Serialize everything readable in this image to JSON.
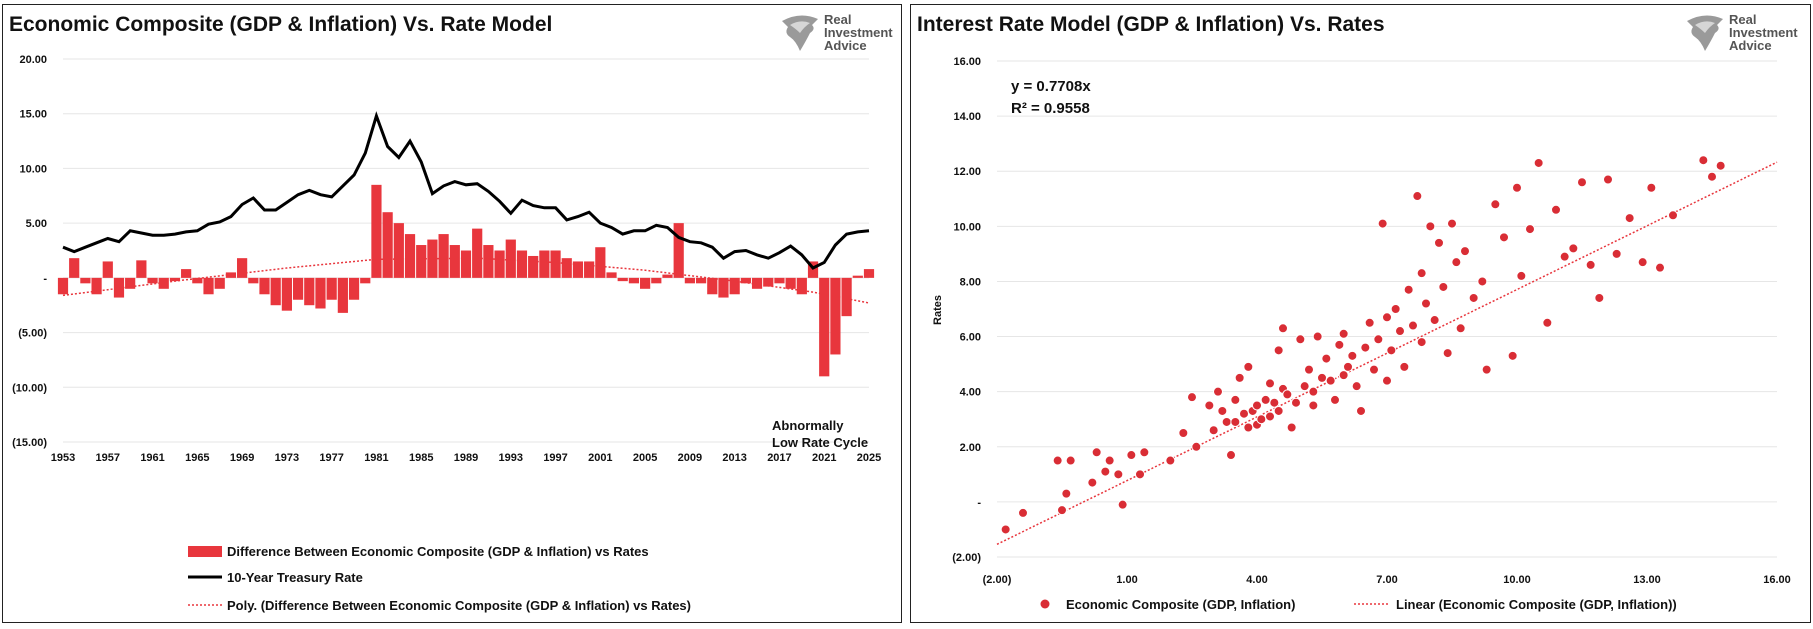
{
  "left": {
    "title": "Economic Composite (GDP & Inflation) Vs. Rate Model",
    "logo": {
      "line1": "Real",
      "line2": "Investment",
      "line3": "Advice"
    },
    "annotation": {
      "line1": "Abnormally",
      "line2": "Low Rate Cycle"
    }
  },
  "right": {
    "title": "Interest Rate Model (GDP & Inflation) Vs. Rates",
    "logo": {
      "line1": "Real",
      "line2": "Investment",
      "line3": "Advice"
    },
    "equation": "y = 0.7708x",
    "r_squared": "R² = 0.9558"
  },
  "colors": {
    "bar": "#e8363d",
    "line": "#000000",
    "trend": "#e8363d",
    "grid": "#e6e6e6"
  },
  "chart_data": [
    {
      "type": "bar+line",
      "title": "Economic Composite (GDP & Inflation) Vs. Rate Model",
      "x_ticks": [
        "1953",
        "1957",
        "1961",
        "1965",
        "1969",
        "1973",
        "1977",
        "1981",
        "1985",
        "1989",
        "1993",
        "1997",
        "2001",
        "2005",
        "2009",
        "2013",
        "2017",
        "2021",
        "2025"
      ],
      "y_ticks": [
        "20.00",
        "15.00",
        "10.00",
        "5.00",
        "-",
        "(5.00)",
        "(10.00)",
        "(15.00)"
      ],
      "ylim": [
        -15,
        20
      ],
      "xlim": [
        1953,
        2025
      ],
      "series": [
        {
          "name": "Difference Between Economic Composite (GDP & Inflation) vs Rates",
          "kind": "bar",
          "x": [
            1953,
            1954,
            1955,
            1956,
            1957,
            1958,
            1959,
            1960,
            1961,
            1962,
            1963,
            1964,
            1965,
            1966,
            1967,
            1968,
            1969,
            1970,
            1971,
            1972,
            1973,
            1974,
            1975,
            1976,
            1977,
            1978,
            1979,
            1980,
            1981,
            1982,
            1983,
            1984,
            1985,
            1986,
            1987,
            1988,
            1989,
            1990,
            1991,
            1992,
            1993,
            1994,
            1995,
            1996,
            1997,
            1998,
            1999,
            2000,
            2001,
            2002,
            2003,
            2004,
            2005,
            2006,
            2007,
            2008,
            2009,
            2010,
            2011,
            2012,
            2013,
            2014,
            2015,
            2016,
            2017,
            2018,
            2019,
            2020,
            2021,
            2022,
            2023,
            2024,
            2025
          ],
          "values": [
            -1.5,
            1.8,
            -0.5,
            -1.5,
            1.5,
            -1.8,
            -1.0,
            1.6,
            -0.5,
            -1.0,
            -0.3,
            0.8,
            -0.5,
            -1.5,
            -1.0,
            0.5,
            1.8,
            -0.5,
            -1.5,
            -2.5,
            -3.0,
            -2.0,
            -2.5,
            -2.8,
            -2.0,
            -3.2,
            -2.0,
            -0.5,
            8.5,
            6.0,
            5.0,
            4.0,
            3.0,
            3.5,
            4.0,
            3.0,
            2.5,
            4.5,
            3.0,
            2.5,
            3.5,
            2.5,
            2.0,
            2.5,
            2.5,
            1.8,
            1.5,
            1.5,
            2.8,
            0.5,
            -0.3,
            -0.5,
            -1.0,
            -0.5,
            0.3,
            5.0,
            -0.5,
            -0.5,
            -1.5,
            -1.8,
            -1.5,
            -0.5,
            -1.0,
            -0.8,
            -0.5,
            -1.0,
            -1.5,
            1.5,
            -9.0,
            -7.0,
            -3.5,
            0.2,
            0.8
          ]
        },
        {
          "name": "10-Year Treasury Rate",
          "kind": "line",
          "x": [
            1953,
            1954,
            1955,
            1956,
            1957,
            1958,
            1959,
            1960,
            1961,
            1962,
            1963,
            1964,
            1965,
            1966,
            1967,
            1968,
            1969,
            1970,
            1971,
            1972,
            1973,
            1974,
            1975,
            1976,
            1977,
            1978,
            1979,
            1980,
            1981,
            1982,
            1983,
            1984,
            1985,
            1986,
            1987,
            1988,
            1989,
            1990,
            1991,
            1992,
            1993,
            1994,
            1995,
            1996,
            1997,
            1998,
            1999,
            2000,
            2001,
            2002,
            2003,
            2004,
            2005,
            2006,
            2007,
            2008,
            2009,
            2010,
            2011,
            2012,
            2013,
            2014,
            2015,
            2016,
            2017,
            2018,
            2019,
            2020,
            2021,
            2022,
            2023,
            2024,
            2025
          ],
          "values": [
            2.8,
            2.4,
            2.8,
            3.2,
            3.6,
            3.3,
            4.3,
            4.1,
            3.9,
            3.9,
            4.0,
            4.2,
            4.3,
            4.9,
            5.1,
            5.6,
            6.7,
            7.3,
            6.2,
            6.2,
            6.9,
            7.6,
            8.0,
            7.6,
            7.4,
            8.4,
            9.4,
            11.4,
            14.8,
            12.0,
            11.0,
            12.5,
            10.6,
            7.7,
            8.4,
            8.8,
            8.5,
            8.6,
            7.9,
            7.0,
            5.9,
            7.1,
            6.6,
            6.4,
            6.4,
            5.3,
            5.6,
            6.0,
            5.0,
            4.6,
            4.0,
            4.3,
            4.3,
            4.8,
            4.6,
            3.7,
            3.3,
            3.2,
            2.8,
            1.8,
            2.4,
            2.5,
            2.1,
            1.8,
            2.3,
            2.9,
            2.1,
            0.9,
            1.4,
            3.0,
            4.0,
            4.2,
            4.3
          ]
        },
        {
          "name": "Poly. (Difference Between Economic Composite (GDP & Inflation) vs Rates)",
          "kind": "trend",
          "x": [
            1953,
            1963,
            1973,
            1981,
            1990,
            1997,
            2005,
            2013,
            2020,
            2025
          ],
          "values": [
            -1.6,
            -0.3,
            0.9,
            1.7,
            1.8,
            1.4,
            0.7,
            -0.3,
            -1.3,
            -2.3
          ]
        }
      ]
    },
    {
      "type": "scatter",
      "title": "Interest Rate Model (GDP & Inflation) Vs. Rates",
      "ylabel": "Rates",
      "x_ticks": [
        "(2.00)",
        "1.00",
        "4.00",
        "7.00",
        "10.00",
        "13.00",
        "16.00"
      ],
      "y_ticks": [
        "16.00",
        "14.00",
        "12.00",
        "10.00",
        "8.00",
        "6.00",
        "4.00",
        "2.00",
        "-",
        "(2.00)"
      ],
      "xlim": [
        -2,
        16
      ],
      "ylim": [
        -2,
        16
      ],
      "series": [
        {
          "name": "Economic Composite (GDP, Inflation)",
          "kind": "points",
          "x": [
            -1.8,
            -1.4,
            -0.6,
            -0.5,
            -0.4,
            -0.3,
            0.2,
            0.3,
            0.5,
            0.6,
            0.8,
            0.9,
            1.1,
            1.3,
            1.4,
            2.0,
            2.3,
            2.5,
            2.6,
            2.9,
            3.0,
            3.1,
            3.2,
            3.3,
            3.4,
            3.5,
            3.5,
            3.6,
            3.7,
            3.8,
            3.8,
            3.9,
            4.0,
            4.0,
            4.1,
            4.2,
            4.3,
            4.3,
            4.4,
            4.5,
            4.5,
            4.6,
            4.6,
            4.7,
            4.8,
            4.9,
            5.0,
            5.1,
            5.2,
            5.3,
            5.3,
            5.4,
            5.5,
            5.6,
            5.7,
            5.8,
            5.9,
            6.0,
            6.0,
            6.1,
            6.2,
            6.3,
            6.4,
            6.5,
            6.6,
            6.7,
            6.8,
            6.9,
            7.0,
            7.0,
            7.1,
            7.2,
            7.3,
            7.4,
            7.5,
            7.6,
            7.7,
            7.8,
            7.8,
            7.9,
            8.0,
            8.1,
            8.2,
            8.3,
            8.4,
            8.5,
            8.6,
            8.7,
            8.8,
            9.0,
            9.2,
            9.3,
            9.5,
            9.7,
            9.9,
            10.0,
            10.1,
            10.3,
            10.5,
            10.7,
            10.9,
            11.1,
            11.3,
            11.5,
            11.7,
            11.9,
            12.1,
            12.3,
            12.6,
            12.9,
            13.1,
            13.3,
            13.6,
            14.3,
            14.5,
            14.7
          ],
          "y": [
            -1.0,
            -0.4,
            1.5,
            -0.3,
            0.3,
            1.5,
            0.7,
            1.8,
            1.1,
            1.5,
            1.0,
            -0.1,
            1.7,
            1.0,
            1.8,
            1.5,
            2.5,
            3.8,
            2.0,
            3.5,
            2.6,
            4.0,
            3.3,
            2.9,
            1.7,
            3.7,
            2.9,
            4.5,
            3.2,
            2.7,
            4.9,
            3.3,
            3.5,
            2.8,
            3.0,
            3.7,
            4.3,
            3.1,
            3.6,
            5.5,
            3.3,
            4.1,
            6.3,
            3.9,
            2.7,
            3.6,
            5.9,
            4.2,
            4.8,
            4.0,
            3.5,
            6.0,
            4.5,
            5.2,
            4.4,
            3.7,
            5.7,
            4.6,
            6.1,
            4.9,
            5.3,
            4.2,
            3.3,
            5.6,
            6.5,
            4.8,
            5.9,
            10.1,
            4.4,
            6.7,
            5.5,
            7.0,
            6.2,
            4.9,
            7.7,
            6.4,
            11.1,
            8.3,
            5.8,
            7.2,
            10.0,
            6.6,
            9.4,
            7.8,
            5.4,
            10.1,
            8.7,
            6.3,
            9.1,
            7.4,
            8.0,
            4.8,
            10.8,
            9.6,
            5.3,
            11.4,
            8.2,
            9.9,
            12.3,
            6.5,
            10.6,
            8.9,
            9.2,
            11.6,
            8.6,
            7.4,
            11.7,
            9.0,
            10.3,
            8.7,
            11.4,
            8.5,
            10.4,
            12.4,
            11.8,
            12.2
          ]
        },
        {
          "name": "Linear (Economic Composite (GDP, Inflation))",
          "kind": "trend",
          "slope": 0.7708,
          "x": [
            -2,
            16
          ],
          "y": [
            -1.54,
            12.33
          ]
        }
      ]
    }
  ]
}
